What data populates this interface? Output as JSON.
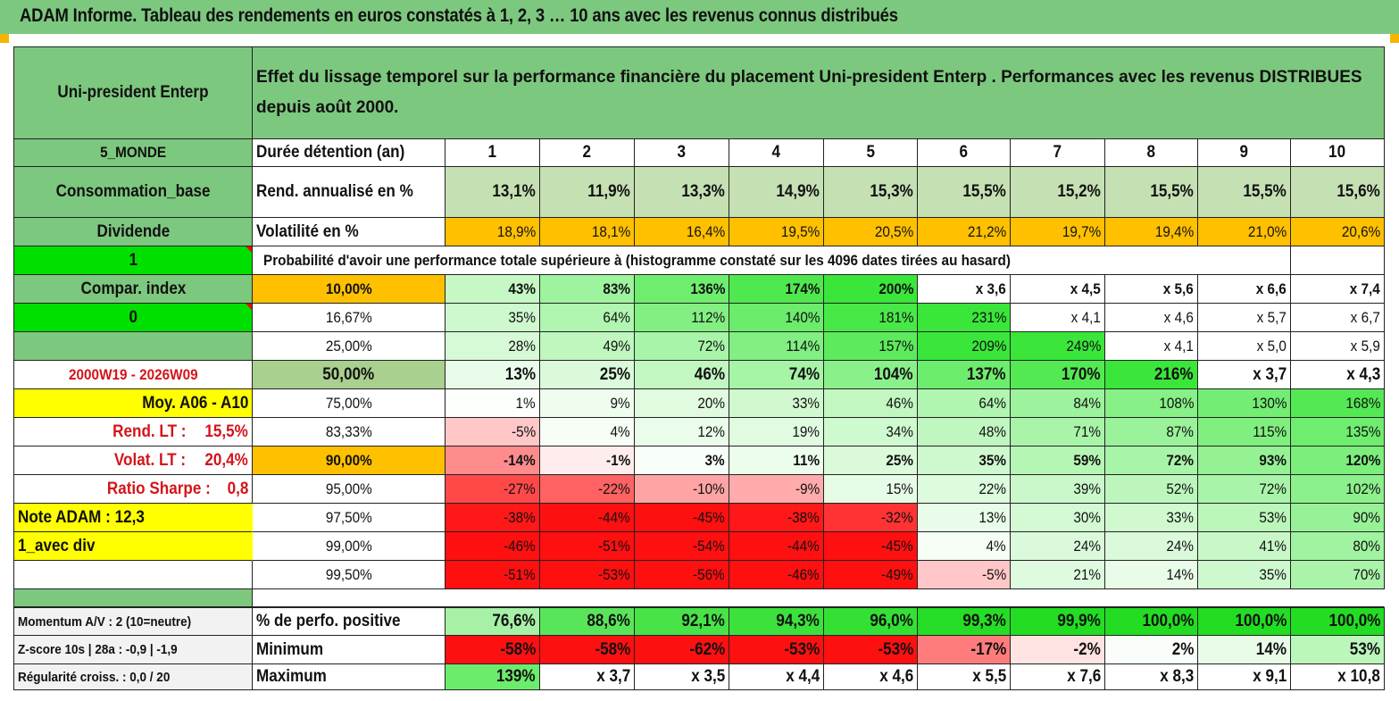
{
  "title": "ADAM Informe. Tableau des rendements en euros constatés à 1, 2, 3 … 10 ans avec les revenus connus distribués",
  "header": {
    "fund_name": "Uni-president Enterp",
    "description": "Effet du lissage temporel sur la performance financière du placement Uni-president Enterp . Performances avec les revenus DISTRIBUES depuis août 2000."
  },
  "sidebar": {
    "zone": "5_MONDE",
    "sector": "Consommation_base",
    "income": "Dividende",
    "flag1": "1",
    "compar_label": "Compar. index",
    "compar_value": "0",
    "period": "2000W19 - 2026W09",
    "moy_label": "Moy. A06 - A10",
    "rend_label": "Rend. LT :",
    "rend_value": "15,5%",
    "volat_label": "Volat. LT :",
    "volat_value": "20,4%",
    "sharpe_label": "Ratio Sharpe :",
    "sharpe_value": "0,8",
    "note": "Note ADAM : 12,3",
    "div_mode": "1_avec div",
    "momentum": "Momentum A/V : 2 (10=neutre)",
    "zscore": "Z-score 10s | 28a : -0,9 | -1,9",
    "regularite": "Régularité croiss. : 0,0 / 20"
  },
  "table": {
    "duration_label": "Durée détention (an)",
    "years": [
      "1",
      "2",
      "3",
      "4",
      "5",
      "6",
      "7",
      "8",
      "9",
      "10"
    ],
    "rend_label": "Rend. annualisé en %",
    "rend": [
      "13,1%",
      "11,9%",
      "13,3%",
      "14,9%",
      "15,3%",
      "15,5%",
      "15,2%",
      "15,5%",
      "15,5%",
      "15,6%"
    ],
    "vol_label": "Volatilité en %",
    "vol": [
      "18,9%",
      "18,1%",
      "16,4%",
      "19,5%",
      "20,5%",
      "21,2%",
      "19,7%",
      "19,4%",
      "21,0%",
      "20,6%"
    ],
    "prob_title": "Probabilité d'avoir une performance totale supérieure à (histogramme constaté sur les 4096 dates tirées au hasard)",
    "prob_rows": [
      {
        "label": "10,00%",
        "values": [
          "43%",
          "83%",
          "136%",
          "174%",
          "200%",
          "x 3,6",
          "x 4,5",
          "x 5,6",
          "x 6,6",
          "x 7,4"
        ]
      },
      {
        "label": "16,67%",
        "values": [
          "35%",
          "64%",
          "112%",
          "140%",
          "181%",
          "231%",
          "x 4,1",
          "x 4,6",
          "x 5,7",
          "x 6,7"
        ]
      },
      {
        "label": "25,00%",
        "values": [
          "28%",
          "49%",
          "72%",
          "114%",
          "157%",
          "209%",
          "249%",
          "x 4,1",
          "x 5,0",
          "x 5,9"
        ]
      },
      {
        "label": "50,00%",
        "values": [
          "13%",
          "25%",
          "46%",
          "74%",
          "104%",
          "137%",
          "170%",
          "216%",
          "x 3,7",
          "x 4,3"
        ]
      },
      {
        "label": "75,00%",
        "values": [
          "1%",
          "9%",
          "20%",
          "33%",
          "46%",
          "64%",
          "84%",
          "108%",
          "130%",
          "168%"
        ]
      },
      {
        "label": "83,33%",
        "values": [
          "-5%",
          "4%",
          "12%",
          "19%",
          "34%",
          "48%",
          "71%",
          "87%",
          "115%",
          "135%"
        ]
      },
      {
        "label": "90,00%",
        "values": [
          "-14%",
          "-1%",
          "3%",
          "11%",
          "25%",
          "35%",
          "59%",
          "72%",
          "93%",
          "120%"
        ]
      },
      {
        "label": "95,00%",
        "values": [
          "-27%",
          "-22%",
          "-10%",
          "-9%",
          "15%",
          "22%",
          "39%",
          "52%",
          "72%",
          "102%"
        ]
      },
      {
        "label": "97,50%",
        "values": [
          "-38%",
          "-44%",
          "-45%",
          "-38%",
          "-32%",
          "13%",
          "30%",
          "33%",
          "53%",
          "90%"
        ]
      },
      {
        "label": "99,00%",
        "values": [
          "-46%",
          "-51%",
          "-54%",
          "-44%",
          "-45%",
          "4%",
          "24%",
          "24%",
          "41%",
          "80%"
        ]
      },
      {
        "label": "99,50%",
        "values": [
          "-51%",
          "-53%",
          "-56%",
          "-46%",
          "-49%",
          "-5%",
          "21%",
          "14%",
          "35%",
          "70%"
        ]
      }
    ],
    "positive_label": "% de perfo. positive",
    "positive": [
      "76,6%",
      "88,6%",
      "92,1%",
      "94,3%",
      "96,0%",
      "99,3%",
      "99,9%",
      "100,0%",
      "100,0%",
      "100,0%"
    ],
    "min_label": "Minimum",
    "min": [
      "-58%",
      "-58%",
      "-62%",
      "-53%",
      "-53%",
      "-17%",
      "-2%",
      "2%",
      "14%",
      "53%"
    ],
    "max_label": "Maximum",
    "max": [
      "139%",
      "x 3,7",
      "x 3,5",
      "x 4,4",
      "x 4,6",
      "x 5,5",
      "x 7,6",
      "x 8,3",
      "x 9,1",
      "x 10,8"
    ]
  },
  "colors": {
    "title_bar": "#7dc87f",
    "header_green": "#7dc87f",
    "sidebar_green": "#7dc87f",
    "rend_row": "#c5e0b3",
    "vol_row": "#ffc000",
    "bright_green": "#00e000",
    "yellow": "#ffff00",
    "orange_cell": "#ffc000",
    "median_label": "#a9d08e",
    "red_text": "#d4141a"
  }
}
